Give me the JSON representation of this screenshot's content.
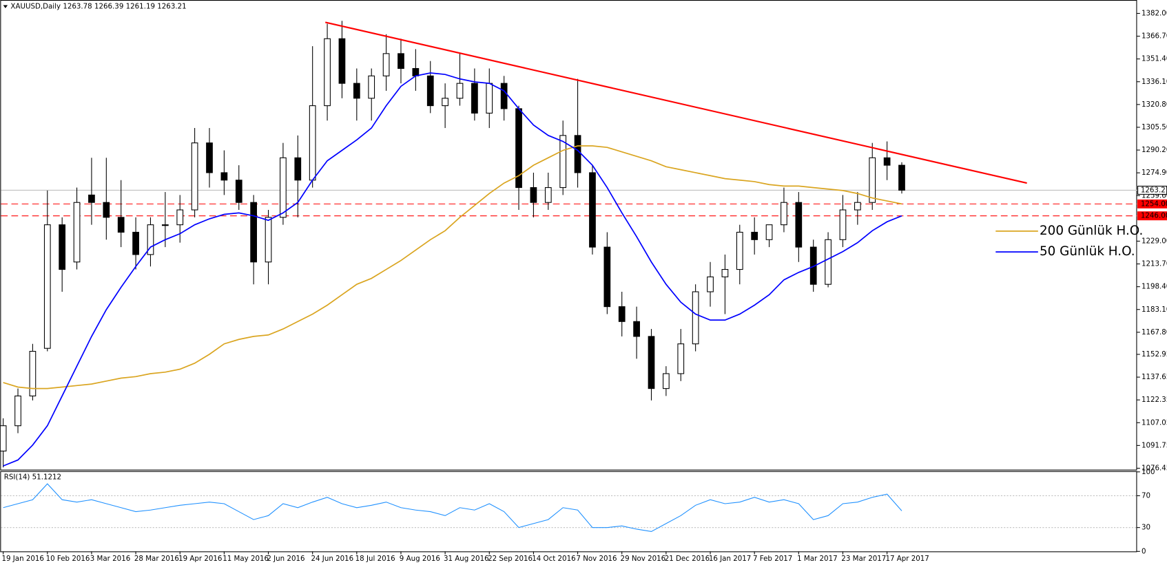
{
  "chart_data": [
    {
      "type": "candlestick",
      "title": "XAUUSD,Daily  1263.78 1266.39 1261.19 1263.21",
      "categories": [
        "19 Jan 2016",
        null,
        null,
        "10 Feb 2016",
        null,
        null,
        "3 Mar 2016",
        null,
        null,
        "28 Mar 2016",
        null,
        null,
        "19 Apr 2016",
        null,
        null,
        "11 May 2016",
        null,
        null,
        "2 Jun 2016",
        null,
        null,
        "24 Jun 2016",
        null,
        null,
        "18 Jul 2016",
        null,
        null,
        "9 Aug 2016",
        null,
        null,
        "31 Aug 2016",
        null,
        null,
        "22 Sep 2016",
        null,
        null,
        "14 Oct 2016",
        null,
        null,
        "7 Nov 2016",
        null,
        null,
        "29 Nov 2016",
        null,
        null,
        "21 Dec 2016",
        null,
        null,
        "16 Jan 2017",
        null,
        null,
        "7 Feb 2017",
        null,
        null,
        "1 Mar 2017",
        null,
        null,
        "23 Mar 2017",
        null,
        null,
        "17 Apr 2017",
        null
      ],
      "open": [
        1088,
        1105,
        1125,
        1157,
        1240,
        1215,
        1260,
        1255,
        1245,
        1235,
        1220,
        1240,
        1240,
        1250,
        1295,
        1275,
        1270,
        1255,
        1215,
        1245,
        1285,
        1270,
        1320,
        1365,
        1335,
        1325,
        1340,
        1355,
        1345,
        1340,
        1320,
        1325,
        1335,
        1315,
        1335,
        1318,
        1265,
        1255,
        1265,
        1300,
        1275,
        1225,
        1185,
        1175,
        1165,
        1130,
        1140,
        1160,
        1195,
        1205,
        1210,
        1235,
        1230,
        1240,
        1255,
        1225,
        1200,
        1230,
        1250,
        1255,
        1285,
        1280
      ],
      "high": [
        1110,
        1130,
        1160,
        1263,
        1245,
        1265,
        1285,
        1285,
        1270,
        1245,
        1245,
        1262,
        1260,
        1305,
        1305,
        1290,
        1280,
        1260,
        1250,
        1295,
        1300,
        1360,
        1375,
        1377,
        1345,
        1345,
        1368,
        1365,
        1358,
        1350,
        1335,
        1355,
        1345,
        1345,
        1340,
        1320,
        1275,
        1275,
        1310,
        1338,
        1280,
        1235,
        1195,
        1185,
        1170,
        1145,
        1170,
        1200,
        1215,
        1220,
        1240,
        1245,
        1240,
        1265,
        1262,
        1230,
        1235,
        1260,
        1262,
        1295,
        1296,
        1282
      ],
      "low": [
        1077,
        1100,
        1122,
        1155,
        1195,
        1210,
        1240,
        1230,
        1225,
        1210,
        1212,
        1225,
        1228,
        1245,
        1265,
        1260,
        1250,
        1200,
        1200,
        1240,
        1245,
        1265,
        1310,
        1325,
        1310,
        1310,
        1330,
        1335,
        1330,
        1315,
        1305,
        1320,
        1310,
        1305,
        1310,
        1250,
        1245,
        1250,
        1260,
        1265,
        1220,
        1180,
        1165,
        1150,
        1122,
        1125,
        1135,
        1155,
        1185,
        1180,
        1200,
        1220,
        1225,
        1235,
        1215,
        1195,
        1198,
        1225,
        1240,
        1250,
        1270,
        1261
      ],
      "close": [
        1105,
        1125,
        1155,
        1240,
        1210,
        1255,
        1255,
        1245,
        1235,
        1220,
        1240,
        1240,
        1250,
        1295,
        1275,
        1270,
        1255,
        1215,
        1245,
        1285,
        1270,
        1320,
        1365,
        1335,
        1325,
        1340,
        1355,
        1345,
        1340,
        1320,
        1325,
        1335,
        1315,
        1335,
        1318,
        1265,
        1255,
        1265,
        1300,
        1275,
        1225,
        1185,
        1175,
        1165,
        1130,
        1140,
        1160,
        1195,
        1205,
        1210,
        1235,
        1230,
        1240,
        1255,
        1225,
        1200,
        1230,
        1250,
        1255,
        1285,
        1280,
        1263.21
      ],
      "series": [
        {
          "name": "200 Günlük H.O.",
          "color": "#daa520",
          "values": [
            1134,
            1131,
            1130,
            1130,
            1131,
            1132,
            1133,
            1135,
            1137,
            1138,
            1140,
            1141,
            1143,
            1147,
            1153,
            1160,
            1163,
            1165,
            1166,
            1170,
            1175,
            1180,
            1186,
            1193,
            1200,
            1204,
            1210,
            1216,
            1223,
            1230,
            1236,
            1245,
            1253,
            1261,
            1268,
            1273,
            1280,
            1285,
            1290,
            1293,
            1293,
            1292,
            1289,
            1286,
            1283,
            1279,
            1277,
            1275,
            1273,
            1271,
            1270,
            1269,
            1267,
            1266,
            1266,
            1265,
            1264,
            1263,
            1261,
            1258,
            1256,
            1254
          ]
        },
        {
          "name": "50 Günlük H.O.",
          "color": "#0000ff",
          "values": [
            1078,
            1082,
            1092,
            1105,
            1125,
            1145,
            1165,
            1183,
            1198,
            1212,
            1225,
            1230,
            1234,
            1240,
            1244,
            1247,
            1248,
            1246,
            1243,
            1248,
            1255,
            1270,
            1283,
            1290,
            1297,
            1305,
            1320,
            1333,
            1340,
            1342,
            1341,
            1338,
            1336,
            1335,
            1330,
            1318,
            1307,
            1300,
            1296,
            1290,
            1280,
            1265,
            1248,
            1232,
            1215,
            1200,
            1188,
            1180,
            1176,
            1176,
            1180,
            1186,
            1193,
            1203,
            1208,
            1212,
            1217,
            1222,
            1228,
            1236,
            1242,
            1246
          ]
        }
      ],
      "trendline": {
        "color": "#ff0000",
        "values": [
          1376,
          1268
        ]
      },
      "hlines": [
        {
          "value": 1263.21,
          "label": "1263.21",
          "color": "#c0c0c0"
        },
        {
          "value": 1254,
          "label": "1254.00",
          "color": "#ff0000"
        },
        {
          "value": 1246,
          "label": "1246.00",
          "color": "#ff0000"
        }
      ],
      "ylim": [
        1075.5,
        1391
      ],
      "yticks": [
        {
          "value": 1382,
          "label": "1382.00"
        },
        {
          "value": 1366.7,
          "label": "1366.70"
        },
        {
          "value": 1351.4,
          "label": "1351.40"
        },
        {
          "value": 1336.1,
          "label": "1336.10"
        },
        {
          "value": 1320.8,
          "label": "1320.80"
        },
        {
          "value": 1305.5,
          "label": "1305.50"
        },
        {
          "value": 1290.2,
          "label": "1290.20"
        },
        {
          "value": 1274.9,
          "label": "1274.90"
        },
        {
          "value": 1259.6,
          "label": "1259.60"
        },
        {
          "value": 1229,
          "label": "1229.00"
        },
        {
          "value": 1213.7,
          "label": "1213.70"
        },
        {
          "value": 1198.4,
          "label": "1198.40"
        },
        {
          "value": 1183.1,
          "label": "1183.10"
        },
        {
          "value": 1167.8,
          "label": "1167.80"
        },
        {
          "value": 1152.95,
          "label": "1152.95"
        },
        {
          "value": 1137.65,
          "label": "1137.65"
        },
        {
          "value": 1122.35,
          "label": "1122.35"
        },
        {
          "value": 1107.05,
          "label": "1107.05"
        },
        {
          "value": 1091.75,
          "label": "1091.75"
        },
        {
          "value": 1076.45,
          "label": "1076.45"
        }
      ]
    },
    {
      "type": "line",
      "title": "RSI(14) 51.1212",
      "color": "#1e90ff",
      "values": [
        55,
        60,
        65,
        85,
        65,
        62,
        65,
        60,
        55,
        50,
        52,
        55,
        58,
        60,
        62,
        60,
        50,
        40,
        45,
        60,
        55,
        62,
        68,
        60,
        55,
        58,
        62,
        55,
        52,
        50,
        45,
        55,
        52,
        60,
        50,
        30,
        35,
        40,
        55,
        52,
        30,
        30,
        32,
        28,
        25,
        35,
        45,
        58,
        65,
        60,
        62,
        68,
        62,
        65,
        60,
        40,
        45,
        60,
        62,
        68,
        72,
        51
      ],
      "ylim": [
        0,
        100
      ],
      "yticks": [
        100,
        70,
        30,
        0
      ],
      "levels": [
        70,
        30
      ]
    }
  ]
}
